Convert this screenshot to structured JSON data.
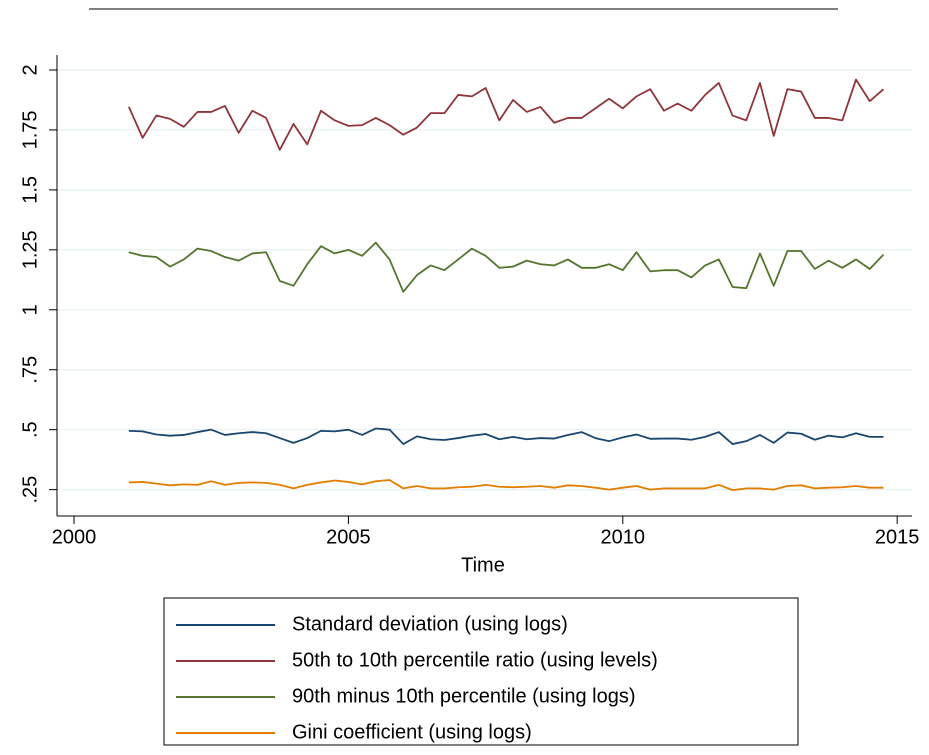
{
  "chart_data": {
    "type": "line",
    "x_label": "Time",
    "x": [
      2001,
      2001.25,
      2001.5,
      2001.75,
      2002,
      2002.25,
      2002.5,
      2002.75,
      2003,
      2003.25,
      2003.5,
      2003.75,
      2004,
      2004.25,
      2004.5,
      2004.75,
      2005,
      2005.25,
      2005.5,
      2005.75,
      2006,
      2006.25,
      2006.5,
      2006.75,
      2007,
      2007.25,
      2007.5,
      2007.75,
      2008,
      2008.25,
      2008.5,
      2008.75,
      2009,
      2009.25,
      2009.5,
      2009.75,
      2010,
      2010.25,
      2010.5,
      2010.75,
      2011,
      2011.25,
      2011.5,
      2011.75,
      2012,
      2012.25,
      2012.5,
      2012.75,
      2013,
      2013.25,
      2013.5,
      2013.75,
      2014,
      2014.25,
      2014.5,
      2014.75
    ],
    "xlim": [
      1999.69,
      2015.27
    ],
    "xticks": [
      2000,
      2005,
      2010,
      2015
    ],
    "ylim": [
      0.14,
      2.0625
    ],
    "yticks": [
      {
        "value": 0.25,
        "label": ".25"
      },
      {
        "value": 0.5,
        "label": ".5"
      },
      {
        "value": 0.75,
        "label": ".75"
      },
      1,
      1.25,
      1.5,
      1.75,
      2
    ],
    "grid": true,
    "series": [
      {
        "name": "Standard deviation (using logs)",
        "color": "#1a476f",
        "values": [
          0.495,
          0.493,
          0.48,
          0.475,
          0.478,
          0.49,
          0.5,
          0.478,
          0.485,
          0.49,
          0.485,
          0.465,
          0.445,
          0.465,
          0.495,
          0.493,
          0.5,
          0.478,
          0.505,
          0.5,
          0.44,
          0.472,
          0.46,
          0.457,
          0.465,
          0.475,
          0.482,
          0.46,
          0.47,
          0.46,
          0.465,
          0.463,
          0.478,
          0.49,
          0.465,
          0.452,
          0.468,
          0.48,
          0.462,
          0.463,
          0.463,
          0.458,
          0.47,
          0.49,
          0.44,
          0.452,
          0.478,
          0.445,
          0.488,
          0.483,
          0.458,
          0.475,
          0.468,
          0.485,
          0.47,
          0.47
        ]
      },
      {
        "name": "50th to 10th percentile ratio (using levels)",
        "color": "#90353b",
        "values": [
          1.846,
          1.717,
          1.81,
          1.796,
          1.763,
          1.825,
          1.825,
          1.85,
          1.738,
          1.83,
          1.8,
          1.667,
          1.775,
          1.69,
          1.83,
          1.79,
          1.767,
          1.77,
          1.8,
          1.77,
          1.73,
          1.76,
          1.82,
          1.82,
          1.896,
          1.89,
          1.925,
          1.79,
          1.875,
          1.825,
          1.846,
          1.78,
          1.8,
          1.8,
          1.84,
          1.88,
          1.84,
          1.89,
          1.92,
          1.83,
          1.86,
          1.83,
          1.896,
          1.946,
          1.81,
          1.79,
          1.946,
          1.725,
          1.92,
          1.91,
          1.8,
          1.8,
          1.79,
          1.96,
          1.87,
          1.92
        ]
      },
      {
        "name": "90th minus 10th percentile (using logs)",
        "color": "#55752f",
        "values": [
          1.24,
          1.225,
          1.22,
          1.18,
          1.21,
          1.255,
          1.245,
          1.22,
          1.205,
          1.235,
          1.24,
          1.12,
          1.1,
          1.19,
          1.265,
          1.235,
          1.25,
          1.225,
          1.28,
          1.21,
          1.075,
          1.145,
          1.185,
          1.165,
          1.21,
          1.255,
          1.225,
          1.175,
          1.18,
          1.205,
          1.19,
          1.185,
          1.21,
          1.175,
          1.175,
          1.19,
          1.165,
          1.24,
          1.16,
          1.165,
          1.165,
          1.135,
          1.185,
          1.21,
          1.095,
          1.09,
          1.235,
          1.1,
          1.245,
          1.245,
          1.17,
          1.205,
          1.175,
          1.21,
          1.17,
          1.23
        ]
      },
      {
        "name": "Gini coefficient (using logs)",
        "color": "#e37e00",
        "values": [
          0.28,
          0.282,
          0.275,
          0.268,
          0.272,
          0.27,
          0.285,
          0.27,
          0.278,
          0.28,
          0.278,
          0.27,
          0.255,
          0.27,
          0.28,
          0.288,
          0.282,
          0.272,
          0.285,
          0.29,
          0.255,
          0.265,
          0.255,
          0.255,
          0.26,
          0.262,
          0.27,
          0.262,
          0.26,
          0.262,
          0.265,
          0.258,
          0.268,
          0.265,
          0.258,
          0.25,
          0.258,
          0.265,
          0.25,
          0.255,
          0.255,
          0.255,
          0.255,
          0.27,
          0.248,
          0.255,
          0.255,
          0.25,
          0.265,
          0.268,
          0.255,
          0.258,
          0.26,
          0.265,
          0.258,
          0.258
        ]
      }
    ]
  }
}
